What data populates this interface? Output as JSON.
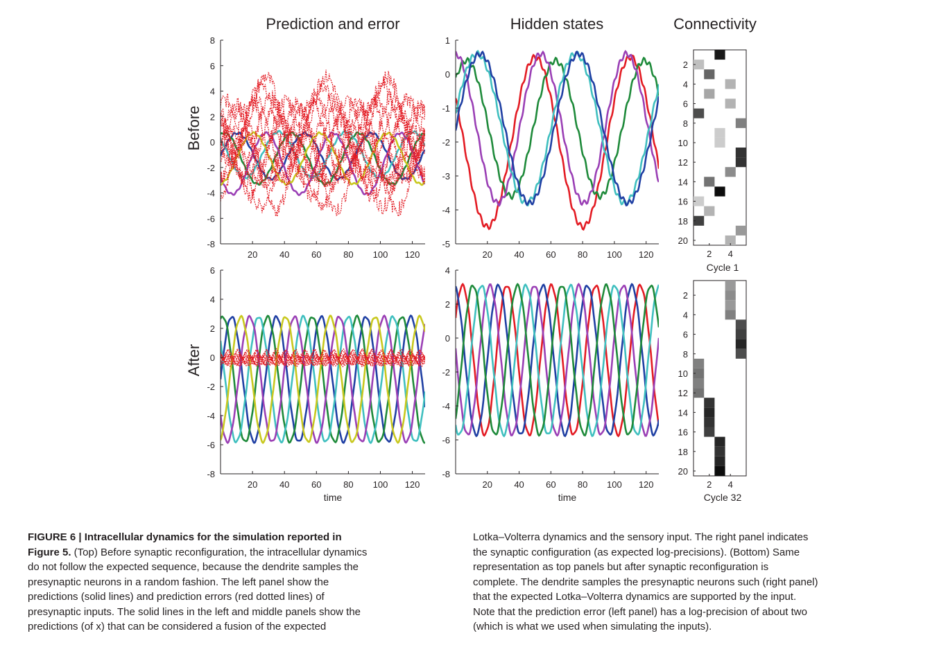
{
  "figure": {
    "column_titles": [
      "Prediction and error",
      "Hidden states",
      "Connectivity"
    ],
    "row_labels": [
      "Before",
      "After"
    ],
    "xlabel": "time",
    "cycle_labels": [
      "Cycle 1",
      "Cycle 32"
    ],
    "colors": {
      "blue": "#1f3fa3",
      "green": "#1e8a3a",
      "cyan": "#3fbfbf",
      "magenta": "#9a3fb5",
      "yellow": "#c8c81e",
      "red": "#e31b23"
    }
  },
  "chart_data": [
    {
      "type": "line",
      "panel": "Prediction and error / Before",
      "xlim": [
        0,
        128
      ],
      "ylim": [
        -8,
        8
      ],
      "xticks": [
        20,
        40,
        60,
        80,
        100,
        120
      ],
      "yticks": [
        -8,
        -6,
        -4,
        -2,
        0,
        2,
        4,
        6,
        8
      ],
      "series": [
        {
          "color": "blue",
          "amp": 1.8,
          "offset": -1.1,
          "period": 42,
          "phase": 0.0,
          "style": "solid"
        },
        {
          "color": "green",
          "amp": 2.0,
          "offset": -1.3,
          "period": 42,
          "phase": 1.2,
          "style": "solid"
        },
        {
          "color": "cyan",
          "amp": 1.8,
          "offset": -1.0,
          "period": 42,
          "phase": 2.4,
          "style": "solid"
        },
        {
          "color": "magenta",
          "amp": 2.4,
          "offset": -1.7,
          "period": 42,
          "phase": 3.6,
          "style": "solid"
        },
        {
          "color": "yellow",
          "amp": 2.0,
          "offset": -1.3,
          "period": 42,
          "phase": 4.8,
          "style": "solid"
        },
        {
          "color": "red",
          "amp": 3.0,
          "offset": 0.0,
          "period": 38,
          "phase": 0.0,
          "style": "dotted",
          "count": 12,
          "spread": 2.5
        }
      ]
    },
    {
      "type": "line",
      "panel": "Hidden states / Before",
      "xlim": [
        0,
        128
      ],
      "ylim": [
        -5,
        1
      ],
      "xticks": [
        20,
        40,
        60,
        80,
        100,
        120
      ],
      "yticks": [
        -5,
        -4,
        -3,
        -2,
        -1,
        0,
        1
      ],
      "series": [
        {
          "color": "red",
          "amp": 2.5,
          "offset": -2.0,
          "period": 60,
          "phase": 2.6,
          "style": "solid"
        },
        {
          "color": "green",
          "amp": 2.0,
          "offset": -1.6,
          "period": 56,
          "phase": 0.8,
          "style": "solid"
        },
        {
          "color": "magenta",
          "amp": 2.2,
          "offset": -1.6,
          "period": 54,
          "phase": 1.6,
          "style": "solid"
        },
        {
          "color": "cyan",
          "amp": 2.2,
          "offset": -1.6,
          "period": 62,
          "phase": 0.2,
          "style": "solid"
        },
        {
          "color": "blue",
          "amp": 2.2,
          "offset": -1.6,
          "period": 62,
          "phase": 0.0,
          "style": "solid"
        }
      ]
    },
    {
      "type": "heatmap",
      "panel": "Connectivity / Cycle 1",
      "rows": 20,
      "cols": 5,
      "yticks": [
        2,
        4,
        6,
        8,
        10,
        12,
        14,
        16,
        18,
        20
      ],
      "xticks": [
        2,
        4
      ],
      "cells": [
        [
          1,
          3,
          0.9
        ],
        [
          2,
          1,
          0.25
        ],
        [
          3,
          2,
          0.6
        ],
        [
          4,
          4,
          0.3
        ],
        [
          5,
          2,
          0.35
        ],
        [
          6,
          4,
          0.3
        ],
        [
          7,
          1,
          0.7
        ],
        [
          8,
          5,
          0.5
        ],
        [
          9,
          3,
          0.2
        ],
        [
          10,
          3,
          0.2
        ],
        [
          11,
          5,
          0.8
        ],
        [
          12,
          5,
          0.8
        ],
        [
          13,
          4,
          0.45
        ],
        [
          14,
          2,
          0.55
        ],
        [
          15,
          3,
          0.95
        ],
        [
          16,
          1,
          0.2
        ],
        [
          17,
          2,
          0.3
        ],
        [
          18,
          1,
          0.75
        ],
        [
          19,
          5,
          0.4
        ],
        [
          20,
          4,
          0.3
        ]
      ]
    },
    {
      "type": "line",
      "panel": "Prediction and error / After",
      "xlim": [
        0,
        128
      ],
      "ylim": [
        -8,
        6
      ],
      "xticks": [
        20,
        40,
        60,
        80,
        100,
        120
      ],
      "yticks": [
        -8,
        -6,
        -4,
        -2,
        0,
        2,
        4,
        6
      ],
      "series": [
        {
          "color": "blue",
          "amp": 4.3,
          "offset": -1.5,
          "period": 28,
          "phase": 0.0,
          "style": "solid"
        },
        {
          "color": "green",
          "amp": 4.3,
          "offset": -1.5,
          "period": 28,
          "phase": 1.25,
          "style": "solid"
        },
        {
          "color": "cyan",
          "amp": 4.3,
          "offset": -1.5,
          "period": 28,
          "phase": 2.5,
          "style": "solid"
        },
        {
          "color": "magenta",
          "amp": 4.3,
          "offset": -1.5,
          "period": 28,
          "phase": 3.75,
          "style": "solid"
        },
        {
          "color": "yellow",
          "amp": 4.3,
          "offset": -1.5,
          "period": 28,
          "phase": 5.0,
          "style": "solid"
        },
        {
          "color": "red",
          "amp": 0.3,
          "offset": 0.0,
          "period": 6,
          "phase": 0.0,
          "style": "dotted",
          "count": 10,
          "spread": 0.3
        }
      ]
    },
    {
      "type": "line",
      "panel": "Hidden states / After",
      "xlim": [
        0,
        128
      ],
      "ylim": [
        -8,
        4
      ],
      "xticks": [
        20,
        40,
        60,
        80,
        100,
        120
      ],
      "yticks": [
        -8,
        -6,
        -4,
        -2,
        0,
        2,
        4
      ],
      "series": [
        {
          "color": "red",
          "amp": 4.4,
          "offset": -1.3,
          "period": 28,
          "phase": 0.6,
          "style": "solid"
        },
        {
          "color": "blue",
          "amp": 4.4,
          "offset": -1.3,
          "period": 28,
          "phase": 1.8,
          "style": "solid"
        },
        {
          "color": "magenta",
          "amp": 4.4,
          "offset": -1.3,
          "period": 28,
          "phase": 3.0,
          "style": "solid"
        },
        {
          "color": "cyan",
          "amp": 4.4,
          "offset": -1.3,
          "period": 28,
          "phase": 4.2,
          "style": "solid"
        },
        {
          "color": "green",
          "amp": 4.4,
          "offset": -1.3,
          "period": 28,
          "phase": 5.4,
          "style": "solid"
        }
      ]
    },
    {
      "type": "heatmap",
      "panel": "Connectivity / Cycle 32",
      "rows": 20,
      "cols": 5,
      "yticks": [
        2,
        4,
        6,
        8,
        10,
        12,
        14,
        16,
        18,
        20
      ],
      "xticks": [
        2,
        4
      ],
      "cells": [
        [
          1,
          4,
          0.4
        ],
        [
          2,
          4,
          0.45
        ],
        [
          3,
          4,
          0.4
        ],
        [
          4,
          4,
          0.5
        ],
        [
          5,
          5,
          0.7
        ],
        [
          6,
          5,
          0.75
        ],
        [
          7,
          5,
          0.85
        ],
        [
          8,
          5,
          0.7
        ],
        [
          9,
          1,
          0.5
        ],
        [
          10,
          1,
          0.55
        ],
        [
          11,
          1,
          0.5
        ],
        [
          12,
          1,
          0.55
        ],
        [
          13,
          2,
          0.8
        ],
        [
          14,
          2,
          0.85
        ],
        [
          15,
          2,
          0.8
        ],
        [
          16,
          2,
          0.75
        ],
        [
          17,
          3,
          0.85
        ],
        [
          18,
          3,
          0.8
        ],
        [
          19,
          3,
          0.85
        ],
        [
          20,
          3,
          0.95
        ]
      ]
    }
  ],
  "caption": {
    "label": "FIGURE 6 | Intracellular dynamics for the simulation reported in",
    "figref": "Figure 5.",
    "left": [
      " (Top) Before synaptic reconfiguration, the intracellular dynamics",
      "do not follow the expected sequence, because the dendrite samples the",
      "presynaptic neurons in a random fashion. The left panel show the",
      "predictions (solid lines) and prediction errors (red dotted lines) of",
      "presynaptic inputs. The solid lines in the left and middle panels show the",
      "predictions (of x) that can be considered a fusion of the expected"
    ],
    "right": [
      "Lotka–Volterra dynamics and the sensory input. The right panel indicates",
      "the synaptic configuration (as expected log-precisions). (Bottom) Same",
      "representation as top panels but after synaptic reconfiguration is",
      "complete. The dendrite samples the presynaptic neurons such (right panel)",
      "that the expected Lotka–Volterra dynamics are supported by the input.",
      "Note that the prediction error (left panel) has a log-precision of about two",
      "(which is what we used when simulating the inputs)."
    ]
  }
}
